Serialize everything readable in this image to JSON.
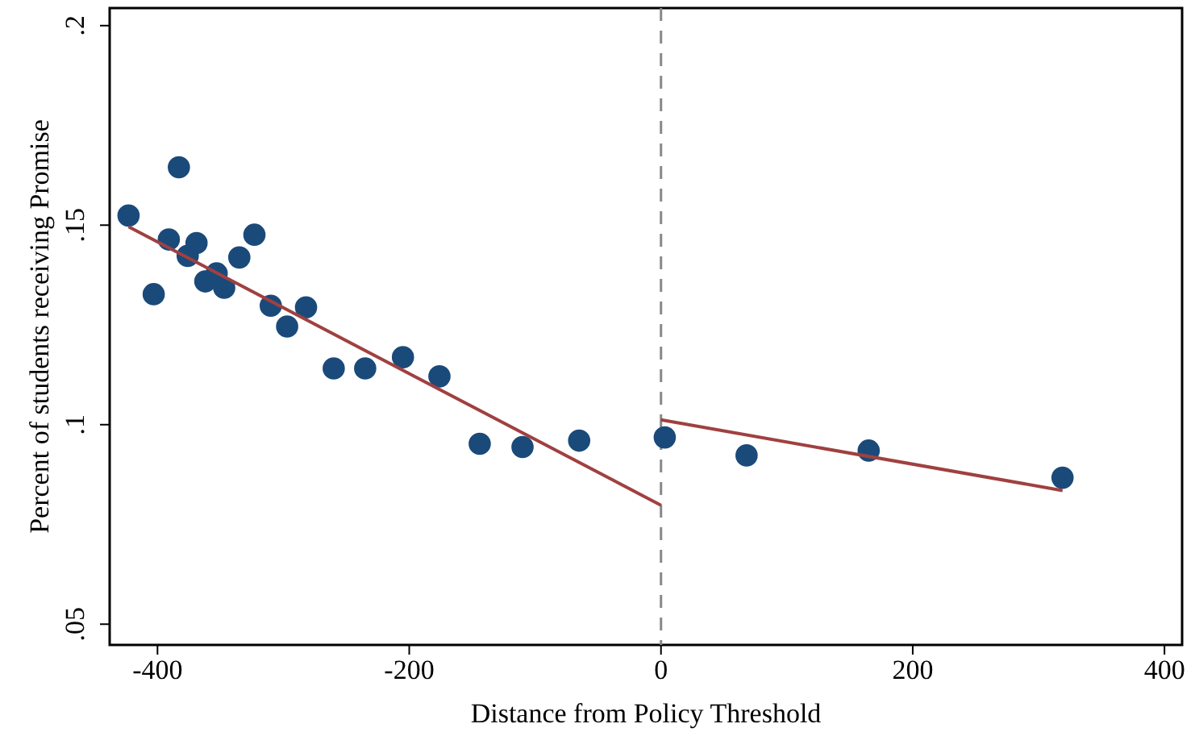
{
  "chart_data": {
    "type": "scatter",
    "xlabel": "Distance from Policy Threshold",
    "ylabel": "Percent of students receiving Promise",
    "xlim": [
      -438,
      414
    ],
    "ylim": [
      0.0448,
      0.2044
    ],
    "xticks": [
      -400,
      -200,
      0,
      200,
      400
    ],
    "yticks": [
      {
        "value": 0.05,
        "label": ".05"
      },
      {
        "value": 0.1,
        "label": ".1"
      },
      {
        "value": 0.15,
        "label": ".15"
      },
      {
        "value": 0.2,
        "label": ".2"
      }
    ],
    "grid": false,
    "ref_lines": [
      {
        "axis": "x",
        "value": 0,
        "color": "#888888",
        "line_style": "dashed"
      }
    ],
    "series": [
      {
        "marker": "circle",
        "color": "#1a4a7a",
        "x": [
          -423,
          -403,
          -383,
          -391,
          -376,
          -369,
          -362,
          -353,
          -347,
          -335,
          -323,
          -310,
          -297,
          -282,
          -260,
          -235,
          -205,
          -176,
          -144,
          -110,
          -65,
          3,
          68,
          165,
          319
        ],
        "values": [
          0.1524,
          0.1327,
          0.1645,
          0.1464,
          0.1423,
          0.1455,
          0.1359,
          0.1379,
          0.1343,
          0.1419,
          0.1476,
          0.1298,
          0.1246,
          0.1294,
          0.1141,
          0.1141,
          0.1169,
          0.1121,
          0.0952,
          0.0944,
          0.096,
          0.0968,
          0.0923,
          0.0935,
          0.0867
        ]
      },
      {
        "type": "line",
        "color": "#a04040",
        "x": [
          -423,
          0
        ],
        "values": [
          0.1496,
          0.0798
        ]
      },
      {
        "type": "line",
        "color": "#a04040",
        "x": [
          0,
          319
        ],
        "values": [
          0.1012,
          0.0835
        ]
      }
    ]
  }
}
